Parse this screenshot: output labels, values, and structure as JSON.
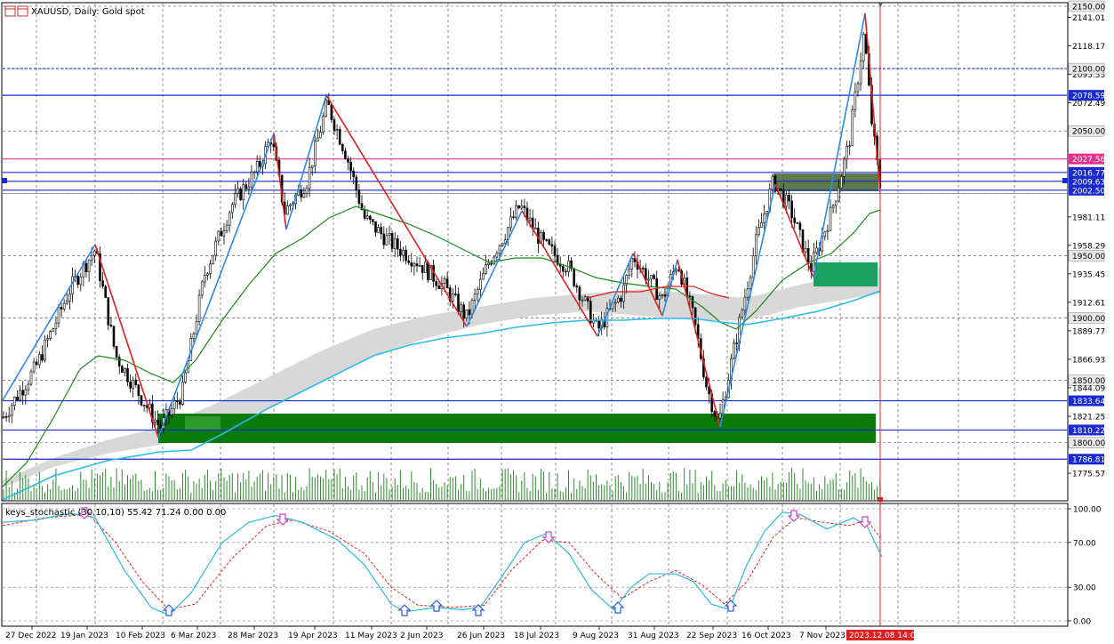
{
  "header": {
    "symbol_title": "XAUUSD, Daily:  Gold spot",
    "icons": [
      "window-icon",
      "window-icon"
    ]
  },
  "indicator": {
    "label": "keys_stochastic (30,10,10) 55.42 71.24 0.00 0.00",
    "levels": [
      100.0,
      70.0,
      30.0,
      0.0
    ],
    "level_labels": [
      "100.00",
      "70.00",
      "30.00",
      "0.00"
    ],
    "k_color": "#2bbbd8",
    "d_color": "#e02020"
  },
  "price_axis": {
    "labels": [
      "2150.00",
      "2141.01",
      "2118.17",
      "2095.33",
      "2072.49",
      "2050.00",
      "2027.56",
      "2016.77",
      "2009.63",
      "2002.50",
      "1981.11",
      "1958.29",
      "1950.00",
      "1935.45",
      "1912.61",
      "1900.00",
      "1889.77",
      "1866.93",
      "1850.00",
      "1844.09",
      "1833.64",
      "1821.25",
      "1810.22",
      "1800.00",
      "1786.81",
      "1775.57"
    ],
    "highlight_labels": {
      "2078.59": "#1a2ad0",
      "2027.56": "#e8308a",
      "2016.77": "#1a2ad0",
      "2009.63": "#1a2ad0",
      "2002.50": "#1a2ad0",
      "1833.64": "#1a2ad0",
      "1810.22": "#1a2ad0",
      "1786.81": "#1a2ad0"
    },
    "gray_labels": [
      "2150.00",
      "2100.00",
      "2050.00",
      "1950.00",
      "1900.00",
      "1850.00",
      "1800.00"
    ],
    "hline_labels": [
      "2100.00",
      "2078.59"
    ]
  },
  "time_axis": {
    "labels": [
      "27 Dec 2022",
      "19 Jan 2023",
      "10 Feb 2023",
      "6 Mar 2023",
      "28 Mar 2023",
      "19 Apr 2023",
      "11 May 2023",
      "2 Jun 2023",
      "26 Jun 2023",
      "18 Jul 2023",
      "9 Aug 2023",
      "31 Aug 2023",
      "22 Sep 2023",
      "16 Oct 2023",
      "7 Nov 2023"
    ],
    "cursor_label": "2023.12.08 14:00"
  },
  "colors": {
    "blue_level": "#1a2ad0",
    "pink_level": "#e8308a",
    "zigzag_up": "#2a8ae8",
    "zigzag_down": "#e02020",
    "ma_green": "#1a8a1a",
    "ma_cyan": "#2bbbea",
    "cloud": "#d8d8d8",
    "zone_green": "#0a7a0a",
    "cursor_red": "#e02020"
  }
}
